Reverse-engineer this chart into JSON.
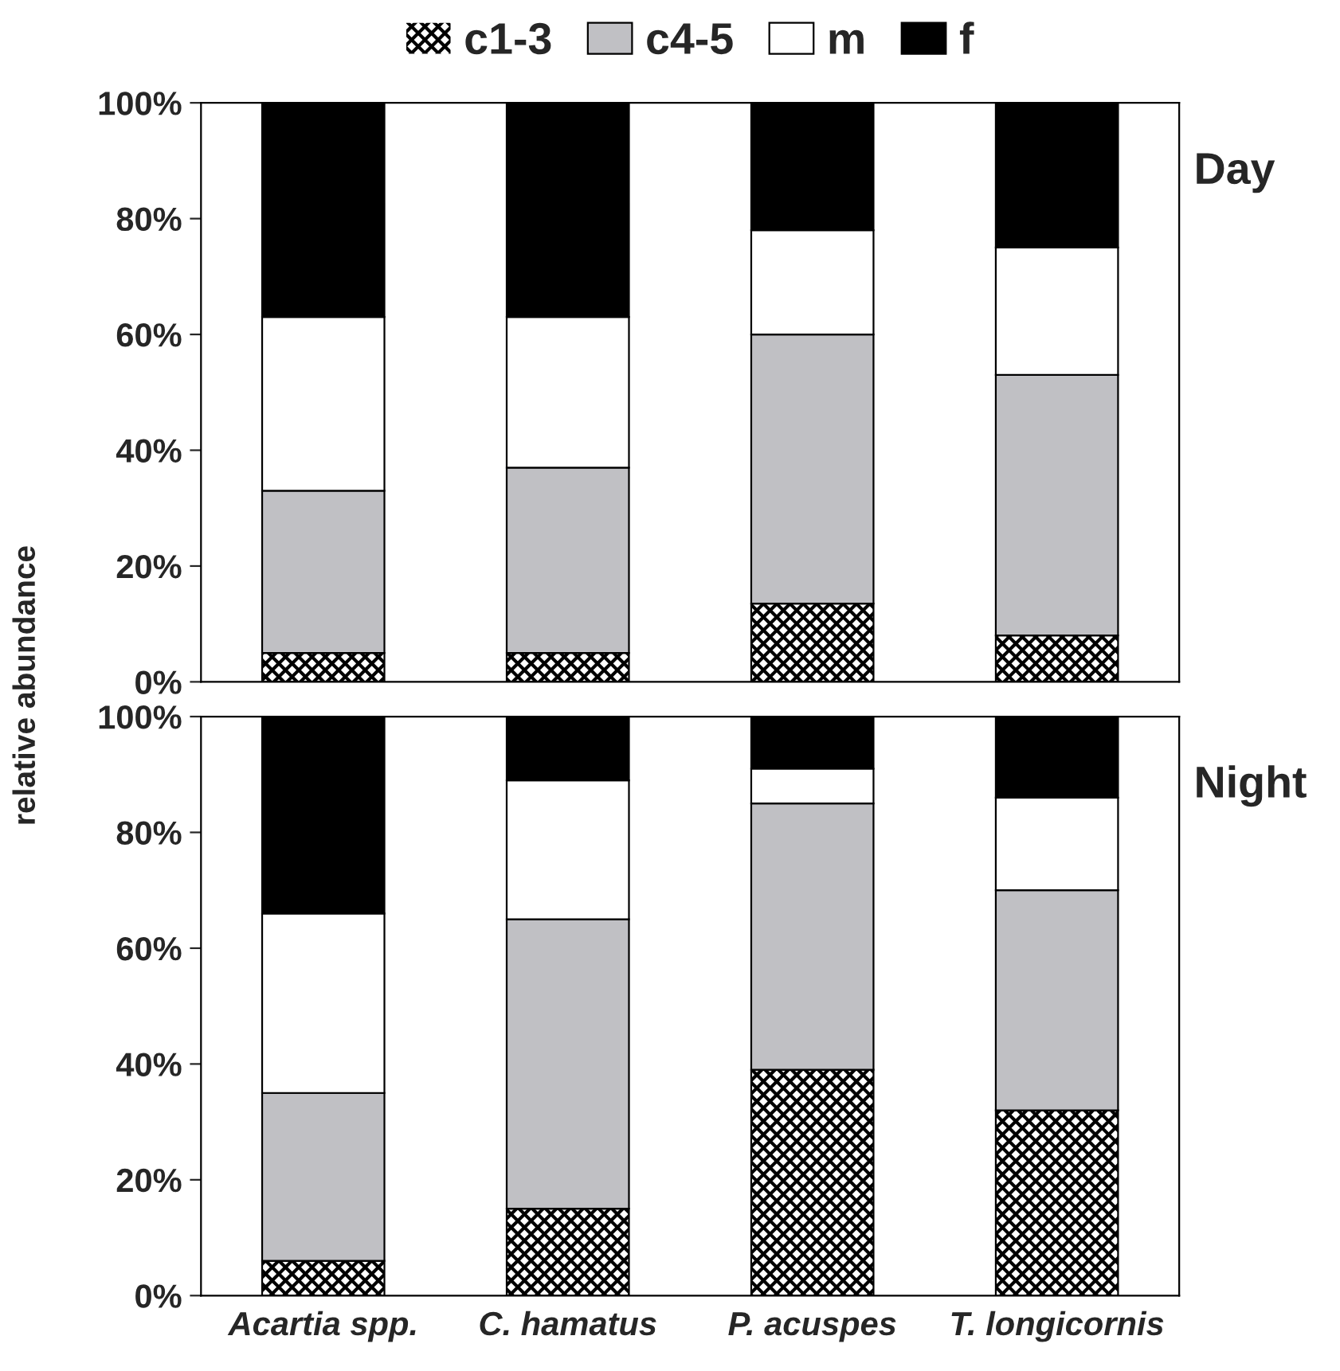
{
  "chart_data": [
    {
      "type": "bar",
      "stacked": true,
      "title": "Day",
      "ylabel": "relative abundance",
      "legend": "top",
      "tick_labels": "y",
      "categories": [
        null,
        null,
        null,
        null
      ],
      "series": [
        {
          "name": "c1-3",
          "color": "#000000",
          "values": [
            5,
            5,
            13.5,
            8
          ]
        },
        {
          "name": "c4-5",
          "color": "#c0c0c4",
          "values": [
            28,
            32,
            46.5,
            45
          ]
        },
        {
          "name": "m",
          "color": "#ffffff",
          "values": [
            30,
            26,
            18,
            22
          ]
        },
        {
          "name": "f",
          "color": "#000000",
          "values": [
            37,
            37,
            22,
            25
          ]
        }
      ],
      "ylim": [
        0,
        100
      ],
      "yticks": [
        {
          "value": 0,
          "label": "0%"
        },
        {
          "value": 20,
          "label": "20%"
        },
        {
          "value": 40,
          "label": "40%"
        },
        {
          "value": 60,
          "label": "60%"
        },
        {
          "value": 80,
          "label": "80%"
        },
        {
          "value": 100,
          "label": "100%"
        }
      ]
    },
    {
      "type": "bar",
      "stacked": true,
      "title": "Night",
      "categories": [
        "Acartia spp.",
        "C. hamatus",
        "P. acuspes",
        "T. longicornis"
      ],
      "series": [
        {
          "color": "#000000",
          "values": [
            6,
            15,
            39,
            32
          ]
        },
        {
          "color": "#c0c0c4",
          "values": [
            29,
            50,
            46,
            38
          ]
        },
        {
          "color": "#ffffff",
          "values": [
            31,
            24,
            6,
            16
          ]
        },
        {
          "color": "#000000",
          "values": [
            34,
            11,
            9,
            14
          ]
        }
      ],
      "ylim": [
        0,
        100
      ],
      "yticks": [
        {
          "value": 0,
          "label": "0%"
        },
        {
          "value": 20,
          "label": "20%"
        },
        {
          "value": 40,
          "label": "40%"
        },
        {
          "value": 60,
          "label": "60%"
        },
        {
          "value": 80,
          "label": "80%"
        },
        {
          "value": 100,
          "label": "100%"
        }
      ]
    }
  ]
}
